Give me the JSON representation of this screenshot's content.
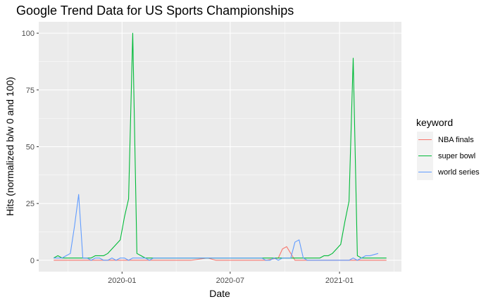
{
  "chart_data": {
    "type": "line",
    "title": "Google Trend Data for US Sports Championships",
    "xlabel": "Date",
    "ylabel": "Hits (normalized b/w 0 and 100)",
    "xlim": [
      "2019-09-08",
      "2021-03-21"
    ],
    "ylim": [
      0,
      100
    ],
    "x_ticks": [
      {
        "date": "2020-01-01",
        "label": "2020-01"
      },
      {
        "date": "2020-07-01",
        "label": "2020-07"
      },
      {
        "date": "2021-01-01",
        "label": "2021-01"
      }
    ],
    "y_ticks": [
      0,
      25,
      50,
      75,
      100
    ],
    "grid": true,
    "legend": {
      "title": "keyword",
      "position": "right"
    },
    "series": [
      {
        "name": "NBA finals",
        "color": "#F8766D",
        "points": [
          [
            "2019-09-08",
            0
          ],
          [
            "2019-10-27",
            0
          ],
          [
            "2020-01-19",
            0
          ],
          [
            "2020-04-26",
            0
          ],
          [
            "2020-05-24",
            1
          ],
          [
            "2020-06-07",
            0
          ],
          [
            "2020-08-30",
            0
          ],
          [
            "2020-09-20",
            1
          ],
          [
            "2020-09-27",
            5
          ],
          [
            "2020-10-04",
            6
          ],
          [
            "2020-10-11",
            3
          ],
          [
            "2020-10-18",
            0
          ],
          [
            "2021-03-21",
            0
          ]
        ]
      },
      {
        "name": "super bowl",
        "color": "#00BA38",
        "points": [
          [
            "2019-09-08",
            1
          ],
          [
            "2019-09-15",
            2
          ],
          [
            "2019-09-22",
            1
          ],
          [
            "2019-10-13",
            1
          ],
          [
            "2019-11-10",
            1
          ],
          [
            "2019-11-17",
            2
          ],
          [
            "2019-12-01",
            2
          ],
          [
            "2019-12-08",
            3
          ],
          [
            "2019-12-15",
            5
          ],
          [
            "2019-12-29",
            9
          ],
          [
            "2020-01-05",
            19
          ],
          [
            "2020-01-12",
            27
          ],
          [
            "2020-01-19",
            100
          ],
          [
            "2020-01-26",
            3
          ],
          [
            "2020-02-02",
            2
          ],
          [
            "2020-02-09",
            1
          ],
          [
            "2020-10-18",
            1
          ],
          [
            "2020-11-29",
            1
          ],
          [
            "2020-12-06",
            2
          ],
          [
            "2020-12-13",
            2
          ],
          [
            "2020-12-20",
            3
          ],
          [
            "2020-12-27",
            5
          ],
          [
            "2021-01-03",
            7
          ],
          [
            "2021-01-10",
            17
          ],
          [
            "2021-01-17",
            26
          ],
          [
            "2021-01-24",
            89
          ],
          [
            "2021-01-31",
            2
          ],
          [
            "2021-02-07",
            1
          ],
          [
            "2021-02-14",
            1
          ],
          [
            "2021-03-21",
            1
          ]
        ]
      },
      {
        "name": "world series",
        "color": "#619CFF",
        "points": [
          [
            "2019-09-08",
            1
          ],
          [
            "2019-09-15",
            1
          ],
          [
            "2019-09-22",
            1
          ],
          [
            "2019-09-29",
            2
          ],
          [
            "2019-10-06",
            3
          ],
          [
            "2019-10-13",
            15
          ],
          [
            "2019-10-20",
            29
          ],
          [
            "2019-10-27",
            1
          ],
          [
            "2019-11-03",
            1
          ],
          [
            "2019-11-10",
            0
          ],
          [
            "2019-11-17",
            1
          ],
          [
            "2019-11-24",
            1
          ],
          [
            "2019-12-01",
            0
          ],
          [
            "2019-12-08",
            0
          ],
          [
            "2019-12-15",
            1
          ],
          [
            "2019-12-22",
            0
          ],
          [
            "2019-12-29",
            1
          ],
          [
            "2020-01-05",
            1
          ],
          [
            "2020-01-12",
            0
          ],
          [
            "2020-01-19",
            1
          ],
          [
            "2020-01-26",
            1
          ],
          [
            "2020-02-02",
            1
          ],
          [
            "2020-02-09",
            1
          ],
          [
            "2020-02-16",
            0
          ],
          [
            "2020-02-23",
            1
          ],
          [
            "2020-04-26",
            1
          ],
          [
            "2020-05-03",
            1
          ],
          [
            "2020-05-10",
            1
          ],
          [
            "2020-08-23",
            1
          ],
          [
            "2020-08-30",
            0
          ],
          [
            "2020-09-06",
            0
          ],
          [
            "2020-09-13",
            1
          ],
          [
            "2020-09-20",
            0
          ],
          [
            "2020-09-27",
            1
          ],
          [
            "2020-10-04",
            1
          ],
          [
            "2020-10-11",
            1
          ],
          [
            "2020-10-18",
            8
          ],
          [
            "2020-10-25",
            9
          ],
          [
            "2020-11-01",
            1
          ],
          [
            "2020-11-08",
            0
          ],
          [
            "2020-11-15",
            0
          ],
          [
            "2021-01-17",
            0
          ],
          [
            "2021-01-24",
            1
          ],
          [
            "2021-01-31",
            0
          ],
          [
            "2021-02-07",
            1
          ],
          [
            "2021-02-14",
            2
          ],
          [
            "2021-02-21",
            2
          ],
          [
            "2021-03-07",
            3
          ]
        ]
      }
    ]
  }
}
